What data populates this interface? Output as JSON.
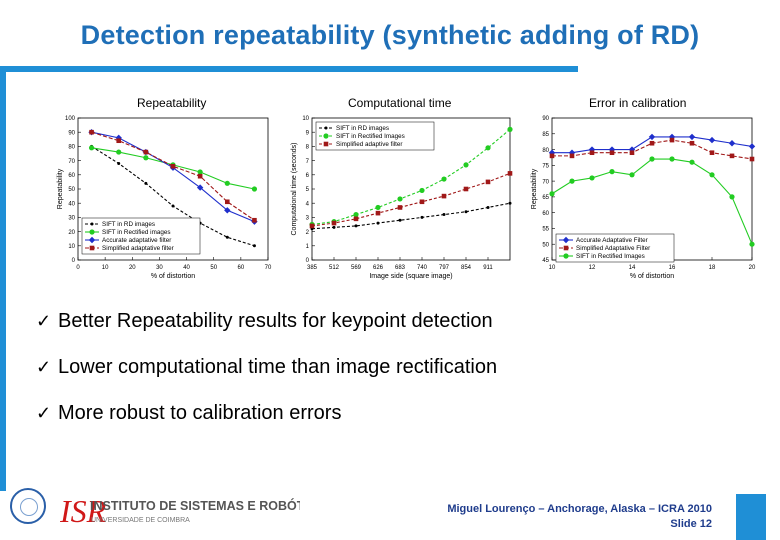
{
  "slide": {
    "title": "Detection repeatability (synthetic adding of RD)",
    "bullets": [
      "Better Repeatability results for keypoint detection",
      "Lower computational time than image rectification",
      "More robust to calibration errors"
    ],
    "checkmark": "✓",
    "footer_line1": "Miguel Lourenço – Anchorage, Alaska – ICRA 2010",
    "footer_line2": "Slide 12",
    "logo_text_main": "INSTITUTO DE SISTEMAS E ROBÓTICA",
    "logo_text_sub": "UNIVERSIDADE DE COIMBRA",
    "logo_text_mark": "ISR",
    "accent_color": "#1f8fd6",
    "title_color": "#1f6fb7"
  },
  "chart_data": [
    {
      "type": "line",
      "caption": "Repeatability",
      "xlabel": "% of distortion",
      "ylabel": "Repeatability",
      "xlim": [
        0,
        70
      ],
      "ylim": [
        0,
        100
      ],
      "xticks": [
        "0",
        "10",
        "20",
        "30",
        "40",
        "50",
        "60",
        "70"
      ],
      "yticks": [
        "0",
        "10",
        "20",
        "30",
        "40",
        "50",
        "60",
        "70",
        "80",
        "90",
        "100"
      ],
      "x": [
        5,
        15,
        25,
        35,
        45,
        55,
        65
      ],
      "legend_position": "bottom-left",
      "series": [
        {
          "name": "SIFT in RD images",
          "color": "#000000",
          "marker": "dot",
          "dash": "3,2",
          "values": [
            80,
            68,
            54,
            38,
            26,
            16,
            10
          ]
        },
        {
          "name": "SIFT in Rectified images",
          "color": "#22cc22",
          "marker": "circle",
          "dash": "",
          "values": [
            79,
            76,
            72,
            67,
            62,
            54,
            50
          ]
        },
        {
          "name": "Accurate adaptative filter",
          "color": "#1f2fcc",
          "marker": "diamond",
          "dash": "",
          "values": [
            90,
            86,
            76,
            65,
            51,
            35,
            27
          ]
        },
        {
          "name": "Simplified adaptative filter",
          "color": "#a01818",
          "marker": "square",
          "dash": "4,2",
          "values": [
            90,
            84,
            76,
            66,
            59,
            41,
            28
          ]
        }
      ]
    },
    {
      "type": "line",
      "caption": "Computational time",
      "xlabel": "Image side (square image)",
      "ylabel": "Computational time (seconds)",
      "xlim": [
        0,
        9
      ],
      "ylim": [
        0,
        10
      ],
      "xticks": [
        "385",
        "512",
        "569",
        "626",
        "683",
        "740",
        "797",
        "854",
        "911"
      ],
      "yticks": [
        "0",
        "1",
        "2",
        "3",
        "4",
        "5",
        "6",
        "7",
        "8",
        "9",
        "10"
      ],
      "x": [
        0,
        1,
        2,
        3,
        4,
        5,
        6,
        7,
        8,
        9
      ],
      "legend_position": "top-left",
      "series": [
        {
          "name": "SIFT in RD images",
          "color": "#000000",
          "marker": "dot",
          "dash": "3,2",
          "values": [
            2.2,
            2.3,
            2.4,
            2.6,
            2.8,
            3.0,
            3.2,
            3.4,
            3.7,
            4.0
          ]
        },
        {
          "name": "SIFT in Rectified Images",
          "color": "#22cc22",
          "marker": "circle",
          "dash": "3,2",
          "values": [
            2.5,
            2.7,
            3.2,
            3.7,
            4.3,
            4.9,
            5.7,
            6.7,
            7.9,
            9.2
          ]
        },
        {
          "name": "Simplified adaptive filter",
          "color": "#a01818",
          "marker": "square",
          "dash": "3,2",
          "values": [
            2.4,
            2.6,
            2.9,
            3.3,
            3.7,
            4.1,
            4.5,
            5.0,
            5.5,
            6.1
          ]
        }
      ]
    },
    {
      "type": "line",
      "caption": "Error in calibration",
      "xlabel": "% of distortion",
      "ylabel": "Repeatability",
      "xlim": [
        10,
        20
      ],
      "ylim": [
        45,
        90
      ],
      "xticks": [
        "10",
        "12",
        "14",
        "16",
        "18",
        "20"
      ],
      "yticks": [
        "45",
        "50",
        "55",
        "60",
        "65",
        "70",
        "75",
        "80",
        "85",
        "90"
      ],
      "x": [
        10,
        11,
        12,
        13,
        14,
        15,
        16,
        17,
        18,
        19,
        20
      ],
      "legend_position": "bottom-right",
      "series": [
        {
          "name": "Accurate Adaptative Filter",
          "color": "#1f2fcc",
          "marker": "diamond",
          "dash": "",
          "values": [
            79,
            79,
            80,
            80,
            80,
            84,
            84,
            84,
            83,
            82,
            81
          ]
        },
        {
          "name": "Simplified Adaptative Filter",
          "color": "#a01818",
          "marker": "square",
          "dash": "4,2",
          "values": [
            78,
            78,
            79,
            79,
            79,
            82,
            83,
            82,
            79,
            78,
            77
          ]
        },
        {
          "name": "SIFT in Rectified Images",
          "color": "#22cc22",
          "marker": "circle",
          "dash": "",
          "values": [
            66,
            70,
            71,
            73,
            72,
            77,
            77,
            76,
            72,
            65,
            50
          ]
        }
      ]
    }
  ]
}
